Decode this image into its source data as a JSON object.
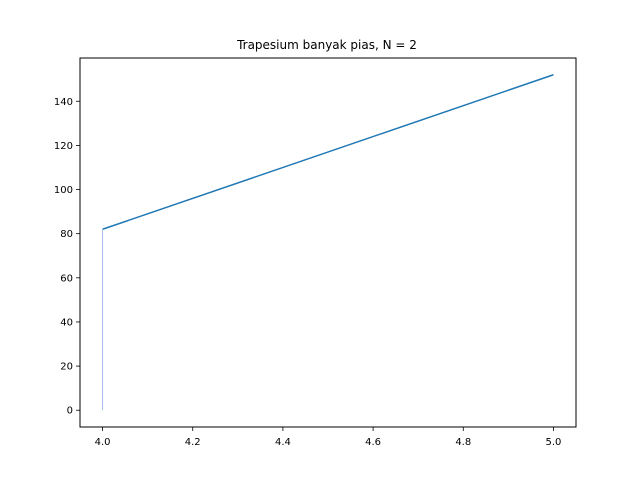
{
  "chart_data": {
    "type": "line",
    "title": "Trapesium banyak pias, N = 2",
    "xlabel": "",
    "ylabel": "",
    "xlim": [
      3.95,
      5.05
    ],
    "ylim": [
      -7.6,
      159.6
    ],
    "x_ticks": [
      4.0,
      4.2,
      4.4,
      4.6,
      4.8,
      5.0
    ],
    "x_tick_labels": [
      "4.0",
      "4.2",
      "4.4",
      "4.6",
      "4.8",
      "5.0"
    ],
    "y_ticks": [
      0,
      20,
      40,
      60,
      80,
      100,
      120,
      140
    ],
    "y_tick_labels": [
      "0",
      "20",
      "40",
      "60",
      "80",
      "100",
      "120",
      "140"
    ],
    "grid": false,
    "series": [
      {
        "x": [
          4.0,
          5.0
        ],
        "y": [
          82,
          152
        ],
        "color": "#1f77b4"
      },
      {
        "x": [
          4.0,
          4.0
        ],
        "y": [
          0,
          82
        ],
        "color": "#a6b8f0"
      }
    ]
  }
}
